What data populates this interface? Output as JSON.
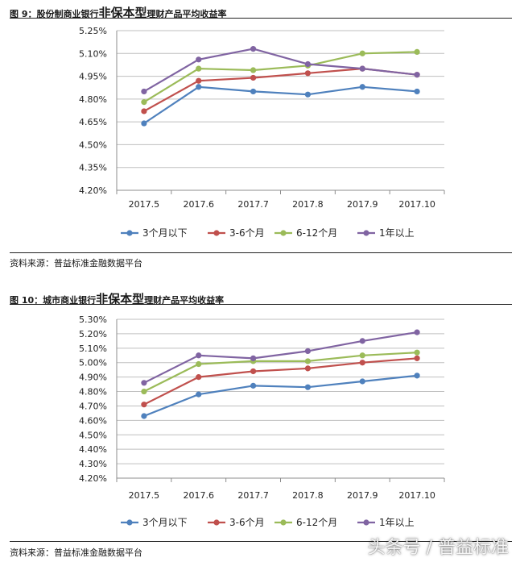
{
  "charts": [
    {
      "title_prefix": "图 9：股份制商业银行",
      "title_highlight": "非保本型",
      "title_suffix": "理财产品平均收益率",
      "source": "资料来源：普益标准金融数据平台"
    },
    {
      "title_prefix": "图 10：城市商业银行",
      "title_highlight": "非保本型",
      "title_suffix": "理财产品平均收益率",
      "source": "资料来源：普益标准金融数据平台"
    }
  ],
  "watermark": "头条号 / 普益标准",
  "chart_data": [
    {
      "type": "line",
      "title": "图 9：股份制商业银行非保本型理财产品平均收益率",
      "categories": [
        "2017.5",
        "2017.6",
        "2017.7",
        "2017.8",
        "2017.9",
        "2017.10"
      ],
      "ylim": [
        4.2,
        5.25
      ],
      "yticks": [
        "4.20%",
        "4.35%",
        "4.50%",
        "4.65%",
        "4.80%",
        "4.95%",
        "5.10%",
        "5.25%"
      ],
      "grid": "horizontal",
      "legend": "bottom",
      "series": [
        {
          "name": "3个月以下",
          "color": "#4f81bd",
          "values": [
            4.64,
            4.88,
            4.85,
            4.83,
            4.88,
            4.85
          ]
        },
        {
          "name": "3-6个月",
          "color": "#c0504d",
          "values": [
            4.72,
            4.92,
            4.94,
            4.97,
            5.0,
            4.96
          ]
        },
        {
          "name": "6-12个月",
          "color": "#9bbb59",
          "values": [
            4.78,
            5.0,
            4.99,
            5.02,
            5.1,
            5.11
          ]
        },
        {
          "name": "1年以上",
          "color": "#8064a2",
          "values": [
            4.85,
            5.06,
            5.13,
            5.03,
            5.0,
            4.96
          ]
        }
      ]
    },
    {
      "type": "line",
      "title": "图 10：城市商业银行非保本型理财产品平均收益率",
      "categories": [
        "2017.5",
        "2017.6",
        "2017.7",
        "2017.8",
        "2017.9",
        "2017.10"
      ],
      "ylim": [
        4.2,
        5.3
      ],
      "yticks": [
        "4.20%",
        "4.30%",
        "4.40%",
        "4.50%",
        "4.60%",
        "4.70%",
        "4.80%",
        "4.90%",
        "5.00%",
        "5.10%",
        "5.20%",
        "5.30%"
      ],
      "grid": "horizontal",
      "legend": "bottom",
      "series": [
        {
          "name": "3个月以下",
          "color": "#4f81bd",
          "values": [
            4.63,
            4.78,
            4.84,
            4.83,
            4.87,
            4.91
          ]
        },
        {
          "name": "3-6个月",
          "color": "#c0504d",
          "values": [
            4.71,
            4.9,
            4.94,
            4.96,
            5.0,
            5.03
          ]
        },
        {
          "name": "6-12个月",
          "color": "#9bbb59",
          "values": [
            4.8,
            4.99,
            5.01,
            5.01,
            5.05,
            5.07
          ]
        },
        {
          "name": "1年以上",
          "color": "#8064a2",
          "values": [
            4.86,
            5.05,
            5.03,
            5.08,
            5.15,
            5.21
          ]
        }
      ]
    }
  ]
}
